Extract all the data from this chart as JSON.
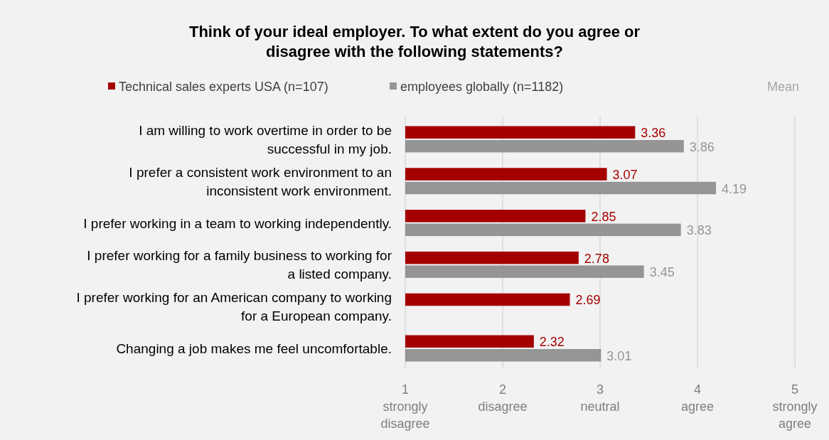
{
  "chart_data": {
    "type": "bar",
    "orientation": "horizontal",
    "title": "Think of your ideal employer. To what extent do you agree or disagree with the following statements?",
    "xlabel": "Mean",
    "categories": [
      "I am willing to work overtime in order to be successful in my job.",
      "I prefer a consistent work environment to an inconsistent work environment.",
      "I prefer working in a team to working independently.",
      "I prefer working for a family business to working for a listed company.",
      "I prefer working for an American company to working for a European company.",
      "Changing a job makes me feel uncomfortable."
    ],
    "series": [
      {
        "name": "Technical sales experts USA (n=107)",
        "color": "#a50000",
        "values": [
          3.36,
          3.07,
          2.85,
          2.78,
          2.69,
          2.32
        ]
      },
      {
        "name": "employees globally (n=1182)",
        "color": "#959595",
        "values": [
          3.86,
          4.19,
          3.83,
          3.45,
          null,
          3.01
        ]
      }
    ],
    "xlim": [
      1,
      5
    ],
    "xticks": [
      {
        "value": 1,
        "label": "1 strongly disagree"
      },
      {
        "value": 2,
        "label": "2 disagree"
      },
      {
        "value": 3,
        "label": "3 neutral"
      },
      {
        "value": 4,
        "label": "4 agree"
      },
      {
        "value": 5,
        "label": "5 strongly agree"
      }
    ],
    "grid": "x",
    "legend": "top",
    "data_labels": true
  }
}
